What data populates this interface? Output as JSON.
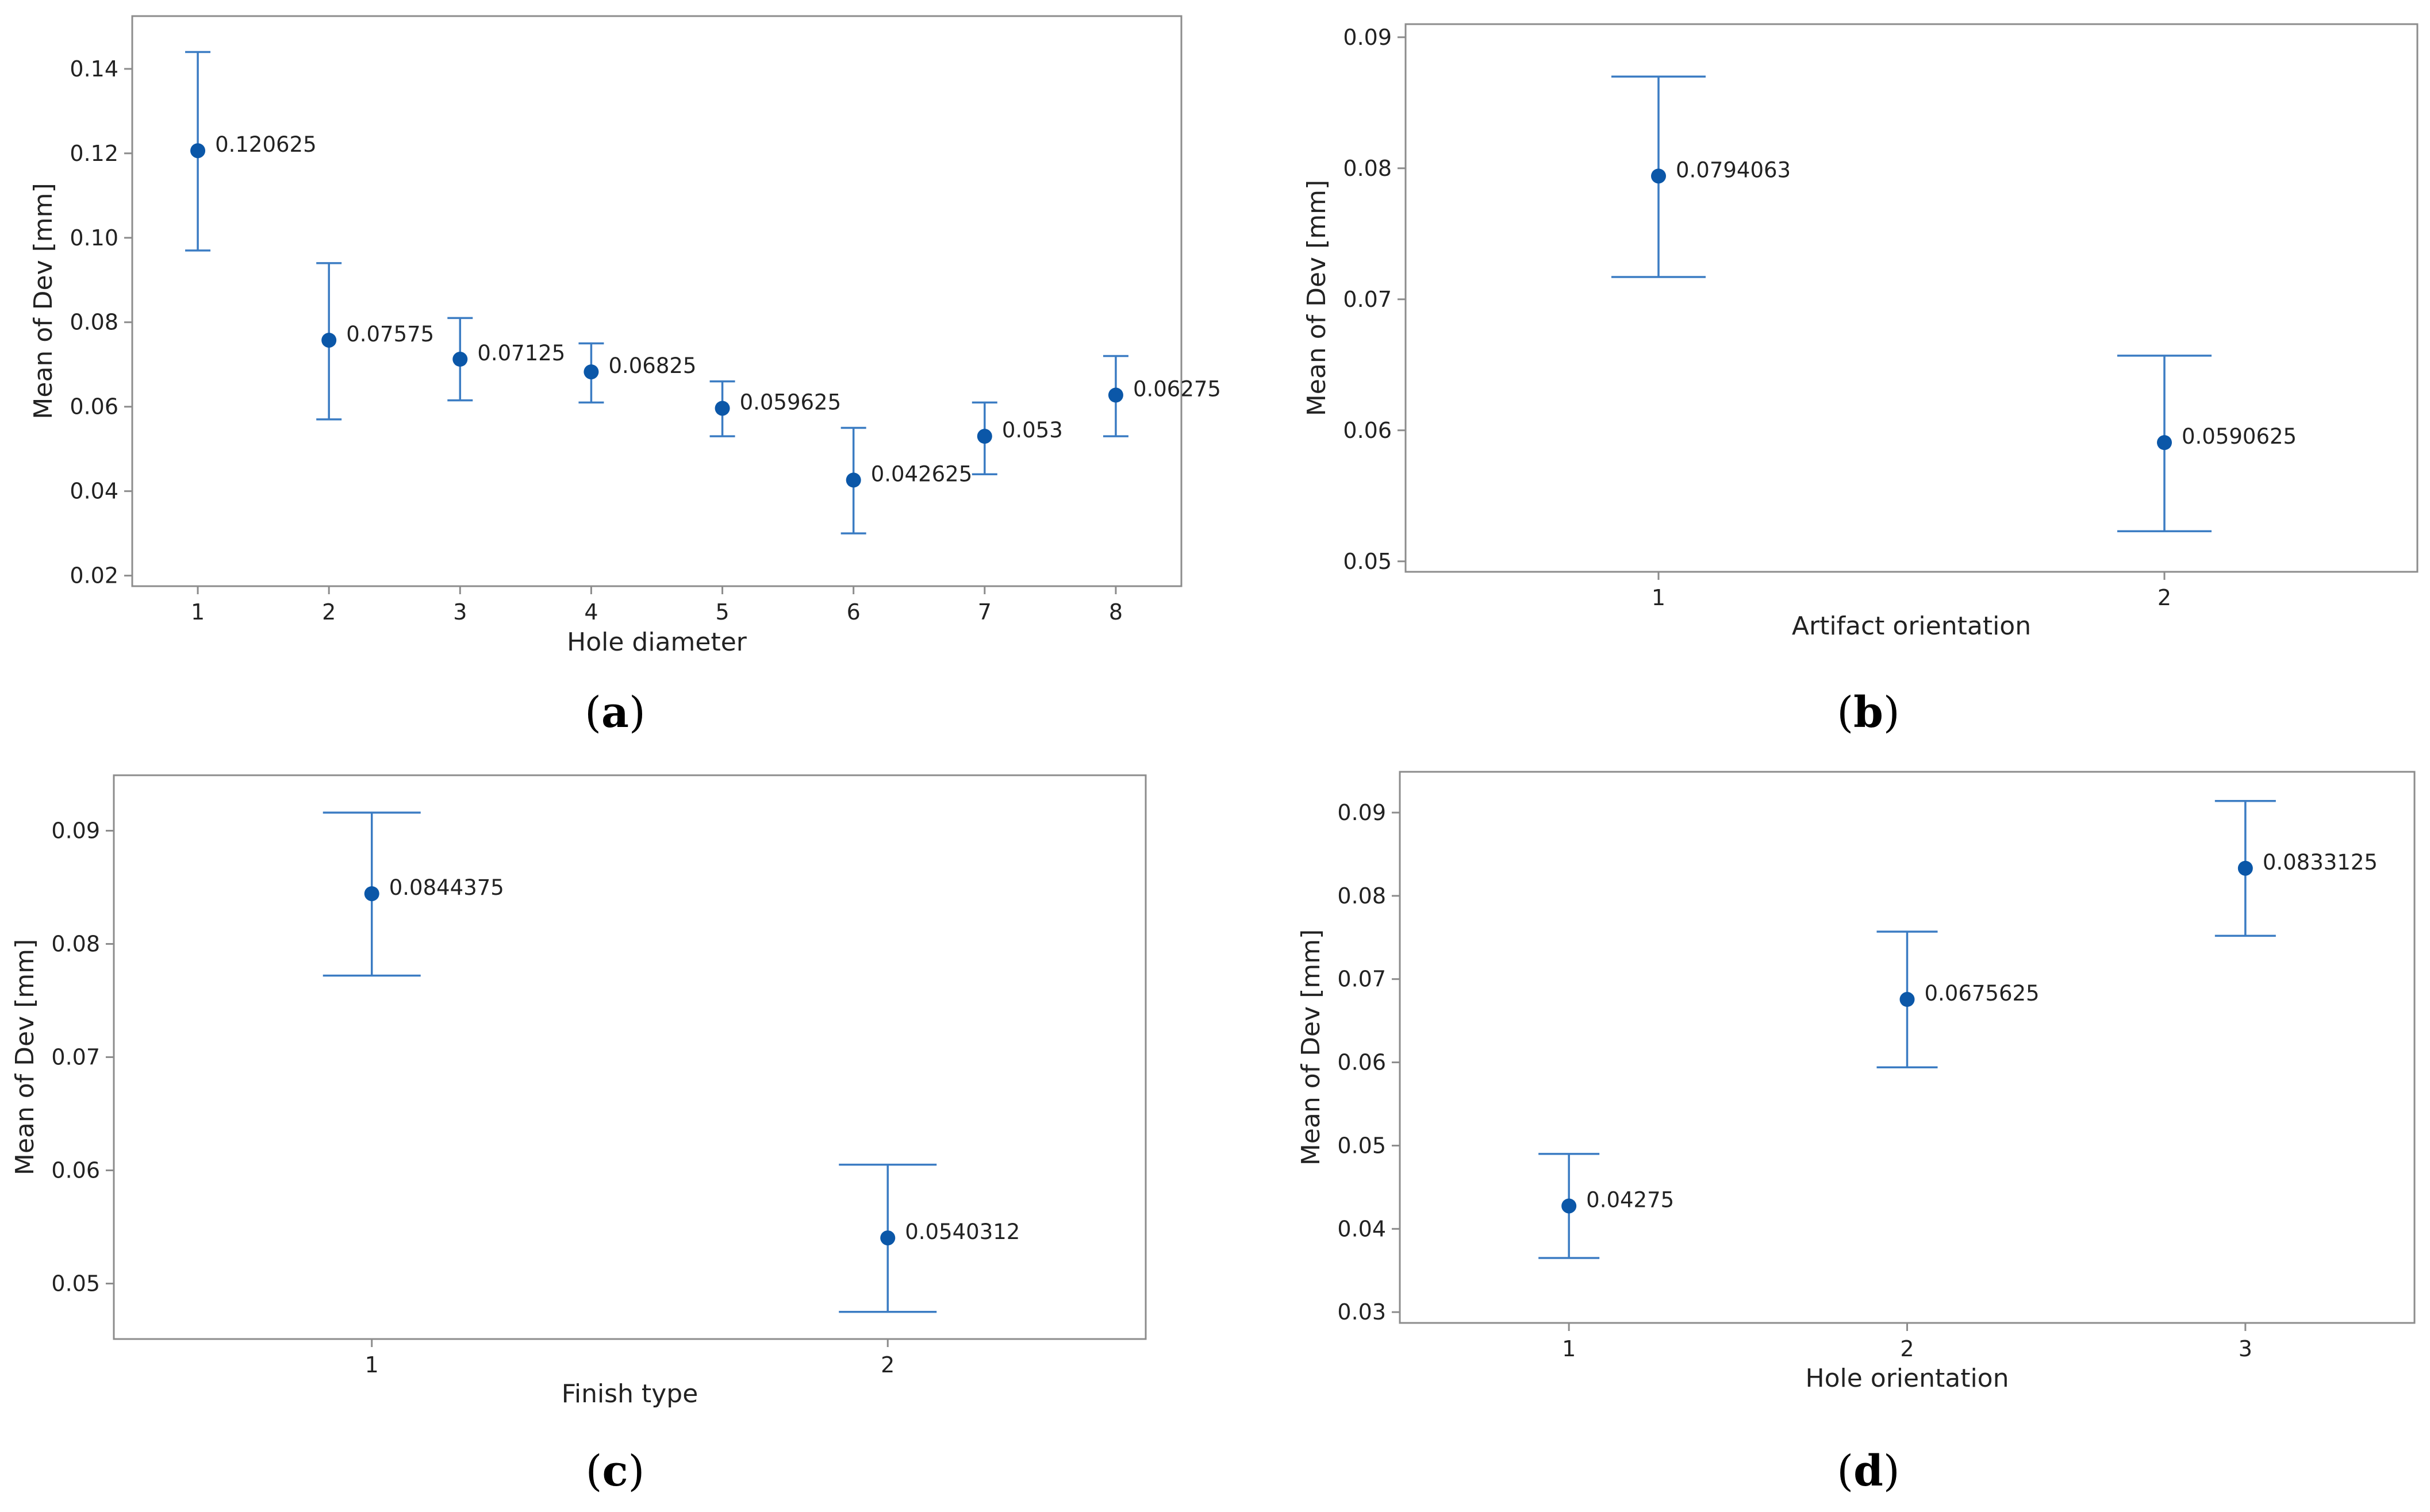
{
  "figure": {
    "panels": [
      "(a)",
      "(b)",
      "(c)",
      "(d)"
    ],
    "style": {
      "frame_color": "#8c8c8c",
      "bar_color": "#3b7cc3",
      "point_color": "#0b57a8",
      "text_color": "#222222"
    }
  },
  "chart_data": [
    {
      "id": "a",
      "panel_label": {
        "open": "(",
        "letter": "a",
        "close": ")"
      },
      "type": "scatter",
      "subtype": "interval-plot",
      "title": "",
      "xlabel": "Hole diameter",
      "ylabel": "Mean of Dev [mm]",
      "categories": [
        "1",
        "2",
        "3",
        "4",
        "5",
        "6",
        "7",
        "8"
      ],
      "values": [
        0.120625,
        0.07575,
        0.07125,
        0.06825,
        0.059625,
        0.042625,
        0.053,
        0.06275
      ],
      "value_labels": [
        "0.120625",
        "0.07575",
        "0.07125",
        "0.06825",
        "0.059625",
        "0.042625",
        "0.053",
        "0.06275"
      ],
      "ci_lower": [
        0.097,
        0.057,
        0.0615,
        0.061,
        0.053,
        0.03,
        0.044,
        0.053
      ],
      "ci_upper": [
        0.144,
        0.094,
        0.081,
        0.075,
        0.066,
        0.055,
        0.061,
        0.072
      ],
      "yticks": [
        0.02,
        0.04,
        0.06,
        0.08,
        0.1,
        0.12,
        0.14
      ],
      "ytick_labels": [
        "0.02",
        "0.04",
        "0.06",
        "0.08",
        "0.10",
        "0.12",
        "0.14"
      ],
      "ylim": [
        0.0175,
        0.1525
      ],
      "xlim": [
        0.5,
        8.5
      ]
    },
    {
      "id": "b",
      "panel_label": {
        "open": "(",
        "letter": "b",
        "close": ")"
      },
      "type": "scatter",
      "subtype": "interval-plot",
      "title": "",
      "xlabel": "Artifact orientation",
      "ylabel": "Mean of Dev [mm]",
      "categories": [
        "1",
        "2"
      ],
      "values": [
        0.0794063,
        0.0590625
      ],
      "value_labels": [
        "0.0794063",
        "0.0590625"
      ],
      "ci_lower": [
        0.0717,
        0.0523
      ],
      "ci_upper": [
        0.087,
        0.0657
      ],
      "yticks": [
        0.05,
        0.06,
        0.07,
        0.08,
        0.09
      ],
      "ytick_labels": [
        "0.05",
        "0.06",
        "0.07",
        "0.08",
        "0.09"
      ],
      "ylim": [
        0.0492,
        0.091
      ],
      "xlim": [
        0.5,
        2.5
      ]
    },
    {
      "id": "c",
      "panel_label": {
        "open": "(",
        "letter": "c",
        "close": ")"
      },
      "type": "scatter",
      "subtype": "interval-plot",
      "title": "",
      "xlabel": "Finish type",
      "ylabel": "Mean of Dev [mm]",
      "categories": [
        "1",
        "2"
      ],
      "values": [
        0.0844375,
        0.0540312
      ],
      "value_labels": [
        "0.0844375",
        "0.0540312"
      ],
      "ci_lower": [
        0.0772,
        0.0475
      ],
      "ci_upper": [
        0.0916,
        0.0605
      ],
      "yticks": [
        0.05,
        0.06,
        0.07,
        0.08,
        0.09
      ],
      "ytick_labels": [
        "0.05",
        "0.06",
        "0.07",
        "0.08",
        "0.09"
      ],
      "ylim": [
        0.0451,
        0.0949
      ],
      "xlim": [
        0.5,
        2.5
      ]
    },
    {
      "id": "d",
      "panel_label": {
        "open": "(",
        "letter": "d",
        "close": ")"
      },
      "type": "scatter",
      "subtype": "interval-plot",
      "title": "",
      "xlabel": "Hole orientation",
      "ylabel": "Mean of Dev [mm]",
      "categories": [
        "1",
        "2",
        "3"
      ],
      "values": [
        0.04275,
        0.0675625,
        0.0833125
      ],
      "value_labels": [
        "0.04275",
        "0.0675625",
        "0.0833125"
      ],
      "ci_lower": [
        0.0365,
        0.0594,
        0.0752
      ],
      "ci_upper": [
        0.049,
        0.0757,
        0.0914
      ],
      "yticks": [
        0.03,
        0.04,
        0.05,
        0.06,
        0.07,
        0.08,
        0.09
      ],
      "ytick_labels": [
        "0.03",
        "0.04",
        "0.05",
        "0.06",
        "0.07",
        "0.08",
        "0.09"
      ],
      "ylim": [
        0.0287,
        0.0949
      ],
      "xlim": [
        0.5,
        3.5
      ]
    }
  ]
}
